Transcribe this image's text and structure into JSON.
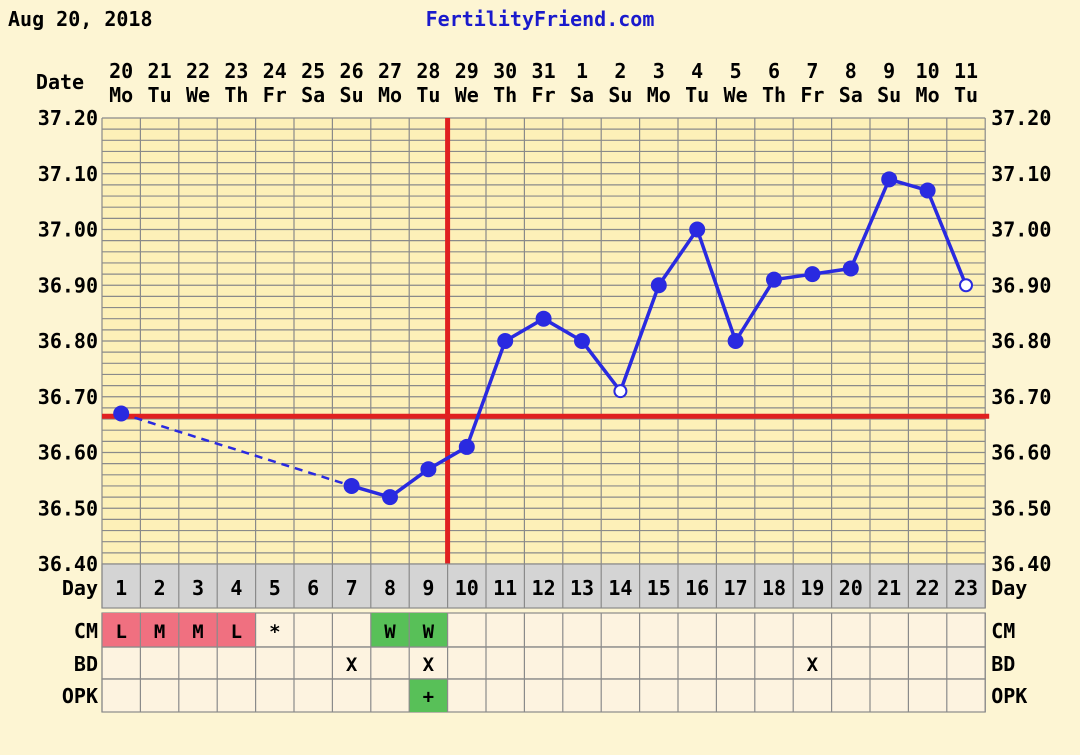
{
  "header": {
    "date": "Aug 20, 2018",
    "site": "FertilityFriend.com"
  },
  "labels": {
    "date_row": "Date",
    "day_row": "Day",
    "cm_row": "CM",
    "bd_row": "BD",
    "opk_row": "OPK"
  },
  "colors": {
    "background": "#fdf5d3",
    "plot_bg": "#fdf0b8",
    "grid": "#8a8a8a",
    "temp_line": "#2a2ae0",
    "coverline": "#e02020",
    "ovulation_line": "#e02020",
    "cm_period": "#f07080",
    "cm_fertile": "#58c058",
    "opk_positive": "#58c058",
    "day_row_bg": "#d4d4d4",
    "obs_row_bg": "#fdf3e0",
    "site_text": "#1a1acc"
  },
  "chart_data": {
    "type": "line",
    "title": "",
    "dates": [
      "20",
      "21",
      "22",
      "23",
      "24",
      "25",
      "26",
      "27",
      "28",
      "29",
      "30",
      "31",
      "1",
      "2",
      "3",
      "4",
      "5",
      "6",
      "7",
      "8",
      "9",
      "10",
      "11"
    ],
    "weekdays": [
      "Mo",
      "Tu",
      "We",
      "Th",
      "Fr",
      "Sa",
      "Su",
      "Mo",
      "Tu",
      "We",
      "Th",
      "Fr",
      "Sa",
      "Su",
      "Mo",
      "Tu",
      "We",
      "Th",
      "Fr",
      "Sa",
      "Su",
      "Mo",
      "Tu"
    ],
    "days": [
      "1",
      "2",
      "3",
      "4",
      "5",
      "6",
      "7",
      "8",
      "9",
      "10",
      "11",
      "12",
      "13",
      "14",
      "15",
      "16",
      "17",
      "18",
      "19",
      "20",
      "21",
      "22",
      "23"
    ],
    "temps": [
      36.67,
      null,
      null,
      null,
      null,
      null,
      36.54,
      36.52,
      36.57,
      36.61,
      36.8,
      36.84,
      36.8,
      36.71,
      36.9,
      37.0,
      36.8,
      36.91,
      36.92,
      36.93,
      37.09,
      37.07,
      36.9
    ],
    "open_points": [
      14,
      23
    ],
    "interpolated": [
      [
        1,
        7
      ]
    ],
    "ylim": [
      36.4,
      37.2
    ],
    "yticks": [
      "36.40",
      "36.50",
      "36.60",
      "36.70",
      "36.80",
      "36.90",
      "37.00",
      "37.10",
      "37.20"
    ],
    "coverline": 36.665,
    "ovulation_day": 10,
    "cm": [
      "L",
      "M",
      "M",
      "L",
      "*",
      "",
      "",
      "W",
      "W",
      "",
      "",
      "",
      "",
      "",
      "",
      "",
      "",
      "",
      "",
      "",
      "",
      "",
      ""
    ],
    "cm_types": [
      "period",
      "period",
      "period",
      "period",
      "",
      "",
      "",
      "fertile",
      "fertile",
      "",
      "",
      "",
      "",
      "",
      "",
      "",
      "",
      "",
      "",
      "",
      "",
      "",
      ""
    ],
    "bd": [
      "",
      "",
      "",
      "",
      "",
      "",
      "X",
      "",
      "X",
      "",
      "",
      "",
      "",
      "",
      "",
      "",
      "",
      "",
      "X",
      "",
      "",
      "",
      ""
    ],
    "opk": [
      "",
      "",
      "",
      "",
      "",
      "",
      "",
      "",
      "+",
      "",
      "",
      "",
      "",
      "",
      "",
      "",
      "",
      "",
      "",
      "",
      "",
      "",
      ""
    ]
  }
}
